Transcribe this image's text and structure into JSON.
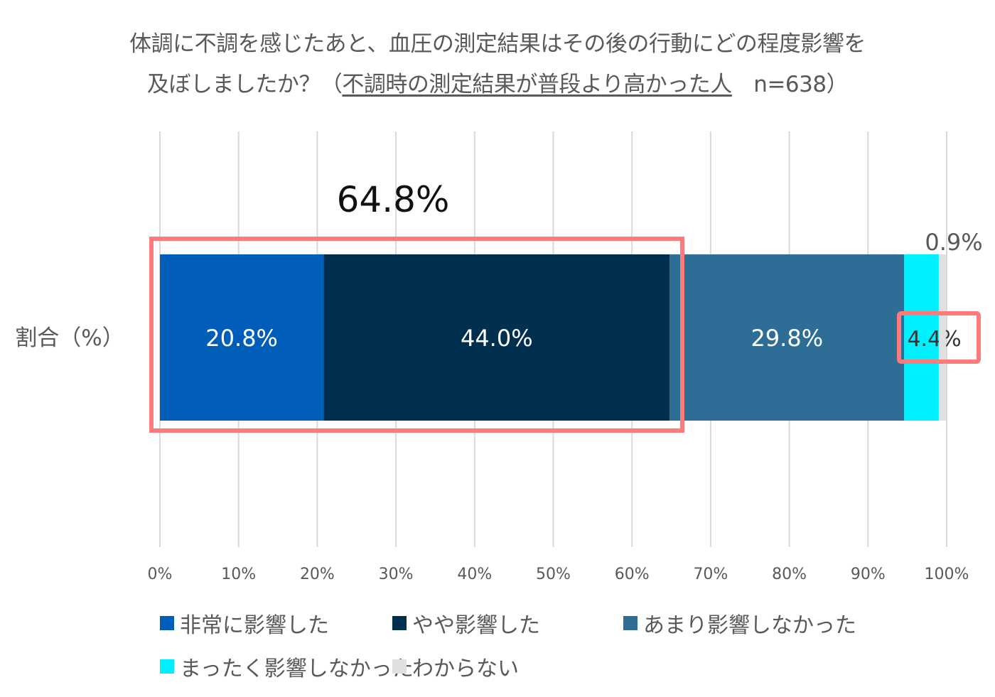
{
  "title": {
    "line1": "体調に不調を感じたあと、血圧の測定結果はその後の行動にどの程度影響を",
    "line2_prefix": "及ぼしましたか？（",
    "line2_underlined": "不調時の測定結果が普段より高かった人",
    "line2_suffix": "　n=638）"
  },
  "chart_data": {
    "type": "bar",
    "orientation": "horizontal-stacked-100",
    "categories": [
      "割合（%）"
    ],
    "series": [
      {
        "name": "非常に影響した",
        "values": [
          20.8
        ],
        "color": "#005EB8",
        "label": "20.8%"
      },
      {
        "name": "やや影響した",
        "values": [
          44.0
        ],
        "color": "#002F4F",
        "label": "44.0%"
      },
      {
        "name": "あまり影響しなかった",
        "values": [
          29.8
        ],
        "color": "#2E6E96",
        "label": "29.8%"
      },
      {
        "name": "まったく影響しなかった",
        "values": [
          4.4
        ],
        "color": "#00F0FF",
        "label": "4.4%"
      },
      {
        "name": "わからない",
        "values": [
          0.9
        ],
        "color": "#E0E0E0",
        "label": "0.9%"
      }
    ],
    "xlim": [
      0,
      100
    ],
    "xticks": [
      "0%",
      "10%",
      "20%",
      "30%",
      "40%",
      "50%",
      "60%",
      "70%",
      "80%",
      "90%",
      "100%"
    ],
    "grid": true,
    "legend_position": "bottom",
    "annotation": {
      "label": "64.8%",
      "value": 64.8,
      "highlight_color": "#FF7A7A"
    }
  }
}
